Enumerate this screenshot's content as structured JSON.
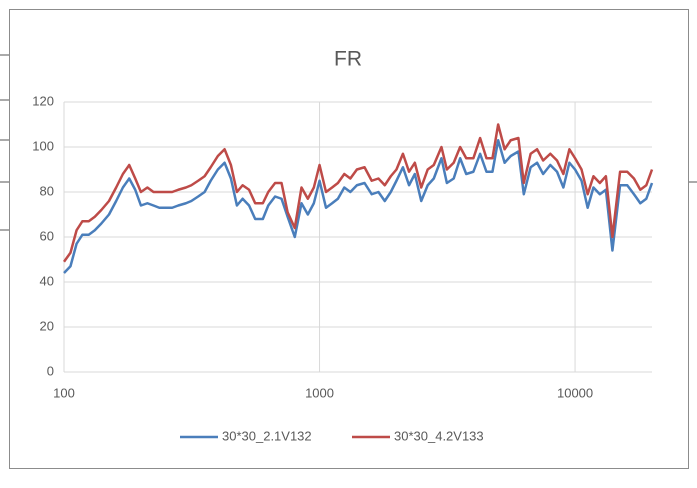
{
  "chart_data": {
    "type": "line",
    "title": "FR",
    "x": [
      100,
      106,
      112,
      118,
      125,
      132,
      140,
      150,
      160,
      170,
      180,
      190,
      200,
      212,
      224,
      236,
      250,
      265,
      280,
      300,
      315,
      335,
      355,
      375,
      400,
      425,
      450,
      475,
      500,
      530,
      560,
      600,
      630,
      670,
      710,
      750,
      800,
      850,
      900,
      950,
      1000,
      1060,
      1120,
      1180,
      1250,
      1320,
      1400,
      1500,
      1600,
      1700,
      1800,
      1900,
      2000,
      2120,
      2240,
      2360,
      2500,
      2650,
      2800,
      3000,
      3150,
      3350,
      3550,
      3750,
      4000,
      4250,
      4500,
      4750,
      5000,
      5300,
      5600,
      6000,
      6300,
      6700,
      7100,
      7500,
      8000,
      8500,
      9000,
      9500,
      10000,
      10600,
      11200,
      11800,
      12500,
      13200,
      14000,
      15000,
      16000,
      17000,
      18000,
      19000,
      20000
    ],
    "series": [
      {
        "name": "30*30_2.1V132",
        "color": "#4a7ebb",
        "values": [
          44,
          47,
          57,
          61,
          61,
          63,
          66,
          70,
          76,
          82,
          86,
          81,
          74,
          75,
          74,
          73,
          73,
          73,
          74,
          75,
          76,
          78,
          80,
          85,
          90,
          93,
          86,
          74,
          77,
          74,
          68,
          68,
          74,
          78,
          77,
          69,
          60,
          75,
          70,
          75,
          85,
          73,
          75,
          77,
          82,
          80,
          83,
          84,
          79,
          80,
          76,
          80,
          85,
          91,
          83,
          88,
          76,
          83,
          86,
          95,
          84,
          86,
          95,
          88,
          89,
          97,
          89,
          89,
          103,
          93,
          96,
          98,
          79,
          91,
          93,
          88,
          92,
          89,
          82,
          93,
          90,
          85,
          73,
          82,
          79,
          81,
          54,
          83,
          83,
          79,
          75,
          77,
          84
        ]
      },
      {
        "name": "30*30_4.2V133",
        "color": "#be4b48",
        "values": [
          49,
          53,
          63,
          67,
          67,
          69,
          72,
          76,
          82,
          88,
          92,
          86,
          80,
          82,
          80,
          80,
          80,
          80,
          81,
          82,
          83,
          85,
          87,
          91,
          96,
          99,
          92,
          80,
          83,
          81,
          75,
          75,
          80,
          84,
          84,
          71,
          64,
          82,
          77,
          82,
          92,
          80,
          82,
          84,
          88,
          86,
          90,
          91,
          85,
          86,
          83,
          87,
          90,
          97,
          89,
          93,
          82,
          90,
          92,
          100,
          90,
          93,
          100,
          95,
          95,
          104,
          95,
          95,
          110,
          99,
          103,
          104,
          84,
          97,
          99,
          94,
          97,
          94,
          88,
          99,
          95,
          90,
          79,
          87,
          84,
          87,
          60,
          89,
          89,
          86,
          81,
          83,
          90
        ]
      }
    ],
    "xlim": [
      100,
      20000
    ],
    "xticks": [
      100,
      1000,
      10000
    ],
    "xlog": true,
    "ylim": [
      0,
      120
    ],
    "yticks": [
      0,
      20,
      40,
      60,
      80,
      100,
      120
    ],
    "grid": true,
    "legend": "bottom"
  }
}
